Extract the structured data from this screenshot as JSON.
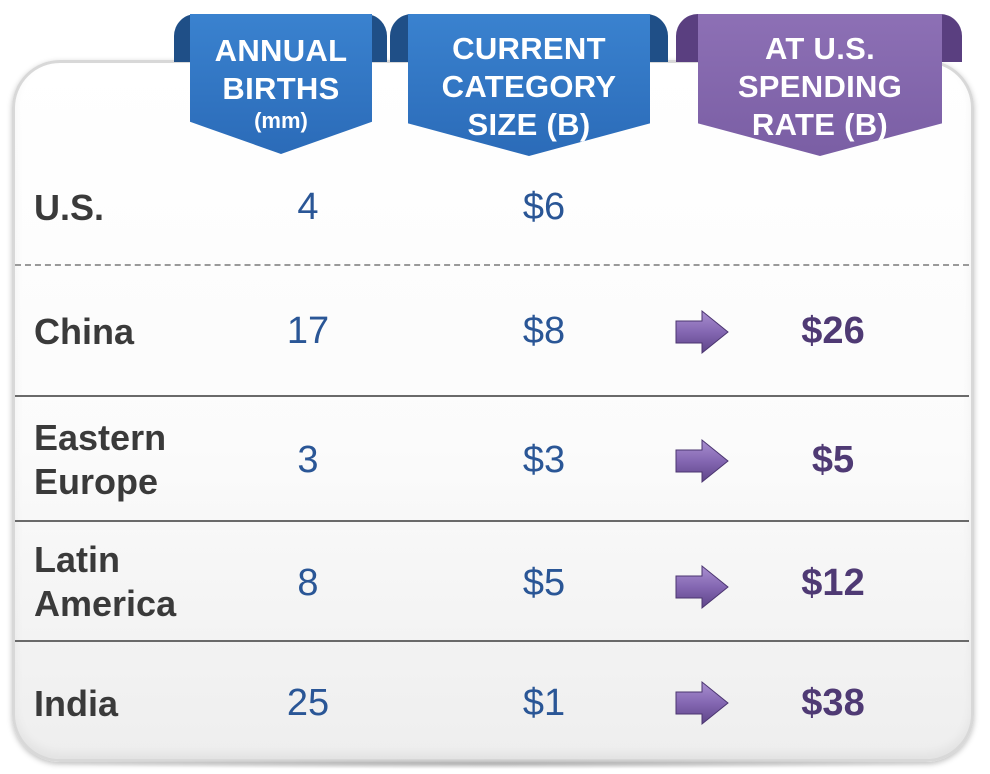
{
  "headers": {
    "births": {
      "line1": "ANNUAL",
      "line2": "BIRTHS",
      "sub": "(mm)"
    },
    "current": {
      "line1": "CURRENT",
      "line2": "CATEGORY",
      "line3": "SIZE (B)"
    },
    "us_rate": {
      "line1": "AT U.S.",
      "line2": "SPENDING",
      "line3": "RATE (B)"
    }
  },
  "rows": [
    {
      "region_line1": "U.S.",
      "region_line2": "",
      "births": "4",
      "current": "$6",
      "at_us_rate": ""
    },
    {
      "region_line1": "China",
      "region_line2": "",
      "births": "17",
      "current": "$8",
      "at_us_rate": "$26"
    },
    {
      "region_line1": "Eastern",
      "region_line2": "Europe",
      "births": "3",
      "current": "$3",
      "at_us_rate": "$5"
    },
    {
      "region_line1": "Latin",
      "region_line2": "America",
      "births": "8",
      "current": "$5",
      "at_us_rate": "$12"
    },
    {
      "region_line1": "India",
      "region_line2": "",
      "births": "25",
      "current": "$1",
      "at_us_rate": "$38"
    }
  ],
  "colors": {
    "blue_header": "#2b6bb8",
    "purple_header": "#7a5ea4",
    "value_text": "#2a5696",
    "spend_text": "#4f3a74",
    "label_text": "#3a3a3a",
    "arrow": "#7b5fa6"
  },
  "icons": {
    "row_arrow": "right-arrow-icon"
  }
}
